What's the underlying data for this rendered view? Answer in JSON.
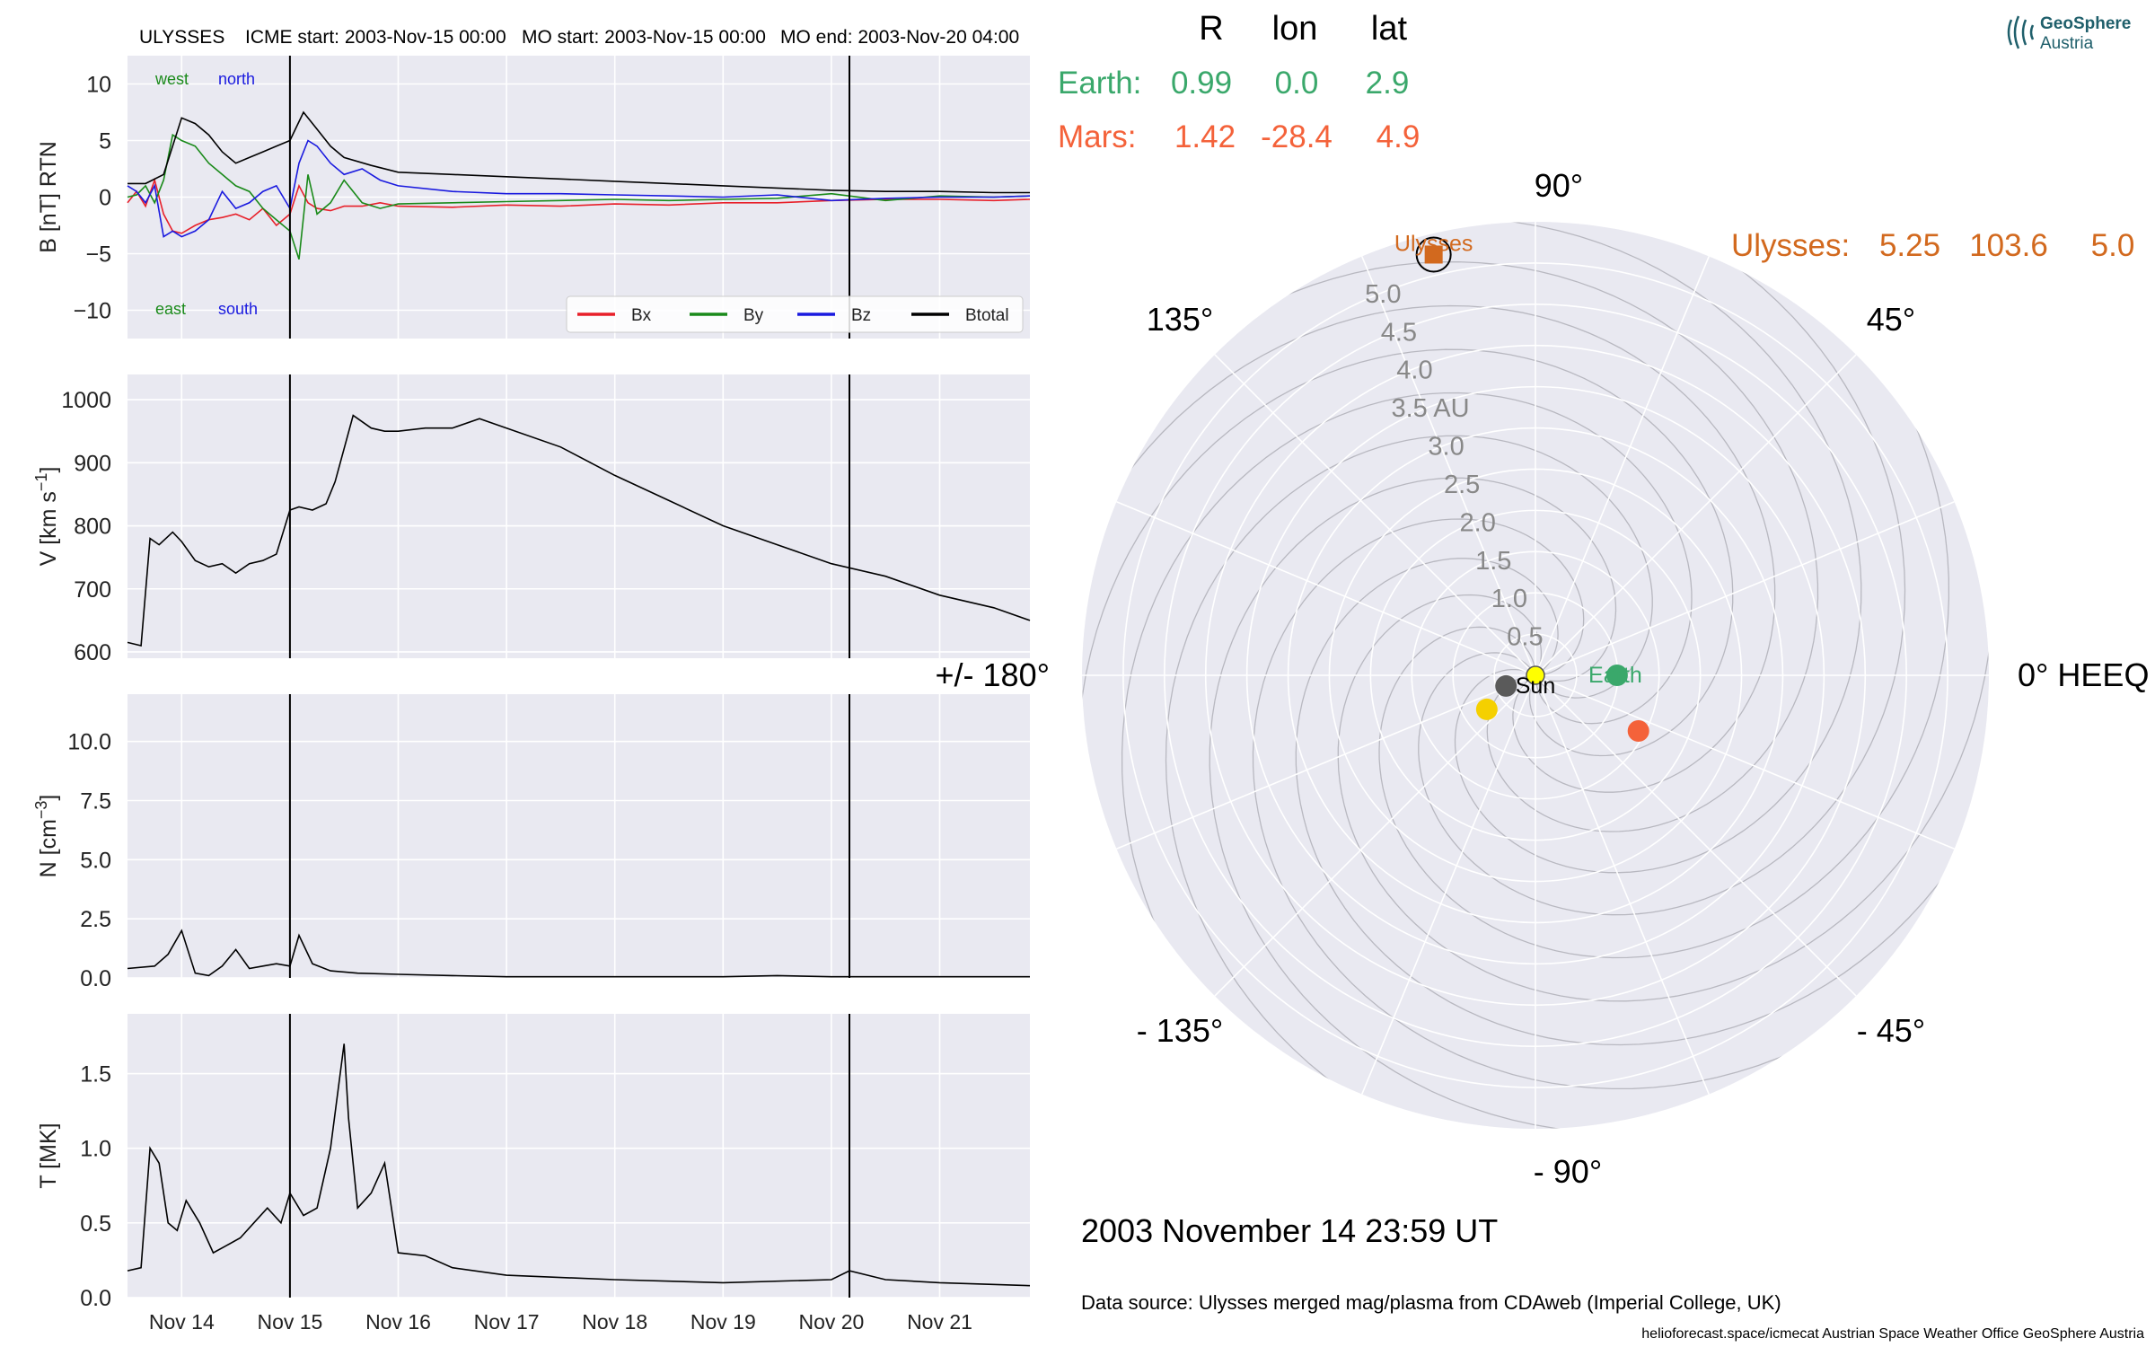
{
  "header": {
    "spacecraft": "ULYSSES",
    "icme_start": "ICME start: 2003-Nov-15 00:00",
    "mo_start": "MO start: 2003-Nov-15 00:00",
    "mo_end": "MO end: 2003-Nov-20 04:00"
  },
  "colors": {
    "panel_bg": "#e9e9f1",
    "grid": "#ffffff",
    "bx": "#e8202a",
    "by": "#1a8a1a",
    "bz": "#1a1adf",
    "btotal": "#000000",
    "earth": "#3aa86b",
    "mars": "#f4623a",
    "ulysses": "#d2691e",
    "mercury": "#5a5a5a",
    "venus": "#f5d000",
    "sun": "#ffff00",
    "spiral": "#b8b8c0"
  },
  "position_table": {
    "headers": [
      "R",
      "lon",
      "lat"
    ],
    "rows": [
      {
        "name": "Earth:",
        "R": "0.99",
        "lon": "0.0",
        "lat": "2.9",
        "color": "#3aa86b"
      },
      {
        "name": "Mars:",
        "R": "1.42",
        "lon": "-28.4",
        "lat": "4.9",
        "color": "#f4623a"
      },
      {
        "name": "Ulysses:",
        "R": "5.25",
        "lon": "103.6",
        "lat": "5.0",
        "color": "#d2691e"
      }
    ]
  },
  "polar": {
    "angle_labels": [
      {
        "deg": 90,
        "text": "90°"
      },
      {
        "deg": 45,
        "text": "45°"
      },
      {
        "deg": 0,
        "text": "0° HEEQ"
      },
      {
        "deg": -45,
        "text": "- 45°"
      },
      {
        "deg": -90,
        "text": "- 90°"
      },
      {
        "deg": -135,
        "text": "- 135°"
      },
      {
        "deg": 180,
        "text": "+/- 180°"
      },
      {
        "deg": 135,
        "text": "135°"
      }
    ],
    "r_labels": [
      "0.5",
      "1.0",
      "1.5",
      "2.0",
      "2.5",
      "3.0",
      "3.5 AU",
      "4.0",
      "4.5",
      "5.0"
    ],
    "r_values": [
      0.5,
      1.0,
      1.5,
      2.0,
      2.5,
      3.0,
      3.5,
      4.0,
      4.5,
      5.0
    ],
    "r_max": 5.5,
    "bodies": [
      {
        "name": "Sun",
        "r": 0,
        "lon": 0,
        "label": "Sun",
        "color": "#ffff00"
      },
      {
        "name": "Earth",
        "r": 0.99,
        "lon": 0.0,
        "label": "Earth",
        "color": "#3aa86b"
      },
      {
        "name": "Mars",
        "r": 1.42,
        "lon": -28.4,
        "label": "",
        "color": "#f4623a"
      },
      {
        "name": "Mercury",
        "r": 0.38,
        "lon": -160,
        "label": "",
        "color": "#5a5a5a"
      },
      {
        "name": "Venus",
        "r": 0.72,
        "lon": -145,
        "label": "",
        "color": "#f5d000"
      },
      {
        "name": "Ulysses",
        "r": 5.25,
        "lon": 103.6,
        "label": "Ulysses",
        "color": "#d2691e"
      }
    ]
  },
  "date_text": "2003 November 14  23:59 UT",
  "data_source": "Data source: Ulysses merged mag/plasma from CDAweb (Imperial College, UK)",
  "footer": "helioforecast.space/icmecat   Austrian Space Weather Office   GeoSphere Austria",
  "logo": {
    "line1": "GeoSphere",
    "line2": "Austria"
  },
  "chart_data": [
    {
      "type": "line",
      "title": "",
      "ylabel": "B [nT] RTN",
      "ylim": [
        -12.5,
        12.5
      ],
      "yticks": [
        -10,
        -5,
        0,
        5,
        10
      ],
      "ytick_labels": [
        "−10",
        "−5",
        "0",
        "5",
        "10"
      ],
      "x_unit": "days from 2003-Nov-14 00:00",
      "xlim_dates": [
        "2003-Nov-13 12:00",
        "2003-Nov-21 20:00"
      ],
      "markers": [
        "2003-Nov-15 00:00",
        "2003-Nov-20 04:00"
      ],
      "annotations": [
        {
          "text": "west",
          "color": "#1a8a1a"
        },
        {
          "text": "north",
          "color": "#1a1adf"
        },
        {
          "text": "east",
          "color": "#1a8a1a"
        },
        {
          "text": "south",
          "color": "#1a1adf"
        }
      ],
      "legend_position": "bottom-right",
      "series": [
        {
          "name": "Bx",
          "color": "#e8202a",
          "x": [
            "2003-11-13 12:00",
            "2003-11-13 14:00",
            "2003-11-13 16:00",
            "2003-11-13 18:00",
            "2003-11-13 20:00",
            "2003-11-13 22:00",
            "2003-11-14 00:00",
            "2003-11-14 03:00",
            "2003-11-14 06:00",
            "2003-11-14 09:00",
            "2003-11-14 12:00",
            "2003-11-14 15:00",
            "2003-11-14 18:00",
            "2003-11-14 21:00",
            "2003-11-15 00:00",
            "2003-11-15 02:00",
            "2003-11-15 04:00",
            "2003-11-15 06:00",
            "2003-11-15 09:00",
            "2003-11-15 12:00",
            "2003-11-15 16:00",
            "2003-11-15 20:00",
            "2003-11-16 00:00",
            "2003-11-16 12:00",
            "2003-11-17 00:00",
            "2003-11-17 12:00",
            "2003-11-18 00:00",
            "2003-11-18 12:00",
            "2003-11-19 00:00",
            "2003-11-19 12:00",
            "2003-11-20 00:00",
            "2003-11-20 12:00",
            "2003-11-21 00:00",
            "2003-11-21 12:00",
            "2003-11-21 20:00"
          ],
          "y": [
            -0.5,
            0.5,
            -0.8,
            1.5,
            -1.5,
            -3.0,
            -3.2,
            -2.5,
            -2.0,
            -1.8,
            -1.5,
            -2.0,
            -1.0,
            -2.5,
            -1.5,
            1.0,
            -0.5,
            -1.0,
            -1.2,
            -0.8,
            -0.8,
            -0.5,
            -0.8,
            -0.9,
            -0.7,
            -0.8,
            -0.6,
            -0.7,
            -0.5,
            -0.5,
            -0.3,
            -0.2,
            -0.2,
            -0.3,
            -0.2
          ]
        },
        {
          "name": "By",
          "color": "#1a8a1a",
          "x": [
            "2003-11-13 12:00",
            "2003-11-13 14:00",
            "2003-11-13 16:00",
            "2003-11-13 18:00",
            "2003-11-13 20:00",
            "2003-11-13 22:00",
            "2003-11-14 00:00",
            "2003-11-14 03:00",
            "2003-11-14 06:00",
            "2003-11-14 09:00",
            "2003-11-14 12:00",
            "2003-11-14 15:00",
            "2003-11-14 18:00",
            "2003-11-14 21:00",
            "2003-11-15 00:00",
            "2003-11-15 02:00",
            "2003-11-15 04:00",
            "2003-11-15 06:00",
            "2003-11-15 09:00",
            "2003-11-15 12:00",
            "2003-11-15 16:00",
            "2003-11-15 20:00",
            "2003-11-16 00:00",
            "2003-11-16 12:00",
            "2003-11-17 00:00",
            "2003-11-17 12:00",
            "2003-11-18 00:00",
            "2003-11-18 12:00",
            "2003-11-19 00:00",
            "2003-11-19 12:00",
            "2003-11-20 00:00",
            "2003-11-20 12:00",
            "2003-11-21 00:00",
            "2003-11-21 12:00",
            "2003-11-21 20:00"
          ],
          "y": [
            0.0,
            0.2,
            1.0,
            -0.5,
            1.5,
            5.5,
            5.0,
            4.5,
            3.0,
            2.0,
            1.0,
            0.5,
            -1.0,
            -2.0,
            -3.0,
            -5.5,
            2.0,
            -1.5,
            -0.5,
            1.5,
            -0.5,
            -1.0,
            -0.6,
            -0.5,
            -0.4,
            -0.3,
            -0.2,
            -0.3,
            -0.2,
            -0.1,
            0.3,
            -0.3,
            0.1,
            0.0,
            0.1
          ]
        },
        {
          "name": "Bz",
          "color": "#1a1adf",
          "x": [
            "2003-11-13 12:00",
            "2003-11-13 14:00",
            "2003-11-13 16:00",
            "2003-11-13 18:00",
            "2003-11-13 20:00",
            "2003-11-13 22:00",
            "2003-11-14 00:00",
            "2003-11-14 03:00",
            "2003-11-14 06:00",
            "2003-11-14 09:00",
            "2003-11-14 12:00",
            "2003-11-14 15:00",
            "2003-11-14 18:00",
            "2003-11-14 21:00",
            "2003-11-15 00:00",
            "2003-11-15 02:00",
            "2003-11-15 04:00",
            "2003-11-15 06:00",
            "2003-11-15 09:00",
            "2003-11-15 12:00",
            "2003-11-15 16:00",
            "2003-11-15 20:00",
            "2003-11-16 00:00",
            "2003-11-16 12:00",
            "2003-11-17 00:00",
            "2003-11-17 12:00",
            "2003-11-18 00:00",
            "2003-11-18 12:00",
            "2003-11-19 00:00",
            "2003-11-19 12:00",
            "2003-11-20 00:00",
            "2003-11-20 12:00",
            "2003-11-21 00:00",
            "2003-11-21 12:00",
            "2003-11-21 20:00"
          ],
          "y": [
            1.0,
            0.5,
            -0.5,
            1.0,
            -3.5,
            -3.0,
            -3.5,
            -3.0,
            -2.0,
            0.5,
            -1.0,
            -0.5,
            0.5,
            1.0,
            -1.0,
            3.0,
            5.0,
            4.5,
            3.0,
            2.0,
            2.5,
            1.5,
            1.0,
            0.5,
            0.3,
            0.3,
            0.2,
            0.1,
            0.0,
            0.2,
            -0.3,
            -0.1,
            0.0,
            0.0,
            0.1
          ]
        },
        {
          "name": "Btotal",
          "color": "#000000",
          "x": [
            "2003-11-13 12:00",
            "2003-11-13 16:00",
            "2003-11-13 20:00",
            "2003-11-14 00:00",
            "2003-11-14 03:00",
            "2003-11-14 06:00",
            "2003-11-14 09:00",
            "2003-11-14 12:00",
            "2003-11-14 15:00",
            "2003-11-14 18:00",
            "2003-11-14 21:00",
            "2003-11-15 00:00",
            "2003-11-15 03:00",
            "2003-11-15 06:00",
            "2003-11-15 09:00",
            "2003-11-15 12:00",
            "2003-11-15 18:00",
            "2003-11-16 00:00",
            "2003-11-16 12:00",
            "2003-11-17 00:00",
            "2003-11-17 12:00",
            "2003-11-18 00:00",
            "2003-11-18 12:00",
            "2003-11-19 00:00",
            "2003-11-19 12:00",
            "2003-11-20 00:00",
            "2003-11-20 12:00",
            "2003-11-21 00:00",
            "2003-11-21 12:00",
            "2003-11-21 20:00"
          ],
          "y": [
            1.2,
            1.2,
            2.0,
            7.0,
            6.5,
            5.5,
            4.0,
            3.0,
            3.5,
            4.0,
            4.5,
            5.0,
            7.5,
            6.0,
            4.5,
            3.5,
            2.8,
            2.2,
            2.0,
            1.8,
            1.6,
            1.4,
            1.2,
            1.0,
            0.8,
            0.6,
            0.5,
            0.5,
            0.4,
            0.4
          ]
        }
      ]
    },
    {
      "type": "line",
      "title": "",
      "ylabel": "V [km s^-1]",
      "ylim": [
        590,
        1040
      ],
      "yticks": [
        600,
        700,
        800,
        900,
        1000
      ],
      "ytick_labels": [
        "600",
        "700",
        "800",
        "900",
        "1000"
      ],
      "x_unit": "days from 2003-Nov-14 00:00",
      "xlim_dates": [
        "2003-Nov-13 12:00",
        "2003-Nov-21 20:00"
      ],
      "series": [
        {
          "name": "",
          "color": "#000000",
          "x": [
            "2003-11-13 12:00",
            "2003-11-13 15:00",
            "2003-11-13 17:00",
            "2003-11-13 19:00",
            "2003-11-13 22:00",
            "2003-11-14 00:00",
            "2003-11-14 03:00",
            "2003-11-14 06:00",
            "2003-11-14 09:00",
            "2003-11-14 12:00",
            "2003-11-14 15:00",
            "2003-11-14 18:00",
            "2003-11-14 21:00",
            "2003-11-15 00:00",
            "2003-11-15 02:00",
            "2003-11-15 05:00",
            "2003-11-15 08:00",
            "2003-11-15 10:00",
            "2003-11-15 14:00",
            "2003-11-15 18:00",
            "2003-11-15 21:00",
            "2003-11-16 00:00",
            "2003-11-16 06:00",
            "2003-11-16 12:00",
            "2003-11-16 18:00",
            "2003-11-17 00:00",
            "2003-11-17 12:00",
            "2003-11-18 00:00",
            "2003-11-18 12:00",
            "2003-11-19 00:00",
            "2003-11-19 12:00",
            "2003-11-20 00:00",
            "2003-11-20 12:00",
            "2003-11-21 00:00",
            "2003-11-21 12:00",
            "2003-11-21 20:00"
          ],
          "y": [
            615,
            610,
            780,
            770,
            790,
            775,
            745,
            735,
            740,
            725,
            740,
            745,
            755,
            825,
            830,
            825,
            835,
            870,
            975,
            955,
            950,
            950,
            955,
            955,
            970,
            955,
            925,
            880,
            840,
            800,
            770,
            740,
            720,
            690,
            670,
            650
          ]
        }
      ]
    },
    {
      "type": "line",
      "title": "",
      "ylabel": "N [cm^-3]",
      "ylim": [
        0,
        12.0
      ],
      "yticks": [
        0.0,
        2.5,
        5.0,
        7.5,
        10.0
      ],
      "ytick_labels": [
        "0.0",
        "2.5",
        "5.0",
        "7.5",
        "10.0"
      ],
      "x_unit": "days from 2003-Nov-14 00:00",
      "xlim_dates": [
        "2003-Nov-13 12:00",
        "2003-Nov-21 20:00"
      ],
      "series": [
        {
          "name": "",
          "color": "#000000",
          "x": [
            "2003-11-13 12:00",
            "2003-11-13 18:00",
            "2003-11-13 21:00",
            "2003-11-14 00:00",
            "2003-11-14 03:00",
            "2003-11-14 06:00",
            "2003-11-14 09:00",
            "2003-11-14 12:00",
            "2003-11-14 15:00",
            "2003-11-14 18:00",
            "2003-11-14 21:00",
            "2003-11-15 00:00",
            "2003-11-15 02:00",
            "2003-11-15 05:00",
            "2003-11-15 09:00",
            "2003-11-15 15:00",
            "2003-11-16 00:00",
            "2003-11-16 12:00",
            "2003-11-17 00:00",
            "2003-11-18 00:00",
            "2003-11-19 00:00",
            "2003-11-19 12:00",
            "2003-11-20 00:00",
            "2003-11-21 00:00",
            "2003-11-21 20:00"
          ],
          "y": [
            0.4,
            0.5,
            1.0,
            2.0,
            0.2,
            0.1,
            0.5,
            1.2,
            0.4,
            0.5,
            0.6,
            0.5,
            1.8,
            0.6,
            0.3,
            0.2,
            0.15,
            0.1,
            0.05,
            0.05,
            0.05,
            0.1,
            0.05,
            0.05,
            0.05
          ]
        }
      ]
    },
    {
      "type": "line",
      "title": "",
      "ylabel": "T [MK]",
      "ylim": [
        0,
        1.9
      ],
      "yticks": [
        0.0,
        0.5,
        1.0,
        1.5
      ],
      "ytick_labels": [
        "0.0",
        "0.5",
        "1.0",
        "1.5"
      ],
      "x_unit": "days from 2003-Nov-14 00:00",
      "xlim_dates": [
        "2003-Nov-13 12:00",
        "2003-Nov-21 20:00"
      ],
      "x_ticks": [
        "Nov 14",
        "Nov 15",
        "Nov 16",
        "Nov 17",
        "Nov 18",
        "Nov 19",
        "Nov 20",
        "Nov 21"
      ],
      "series": [
        {
          "name": "",
          "color": "#000000",
          "x": [
            "2003-11-13 12:00",
            "2003-11-13 15:00",
            "2003-11-13 17:00",
            "2003-11-13 19:00",
            "2003-11-13 21:00",
            "2003-11-13 23:00",
            "2003-11-14 01:00",
            "2003-11-14 04:00",
            "2003-11-14 07:00",
            "2003-11-14 10:00",
            "2003-11-14 13:00",
            "2003-11-14 16:00",
            "2003-11-14 19:00",
            "2003-11-14 22:00",
            "2003-11-15 00:00",
            "2003-11-15 03:00",
            "2003-11-15 06:00",
            "2003-11-15 09:00",
            "2003-11-15 12:00",
            "2003-11-15 13:00",
            "2003-11-15 15:00",
            "2003-11-15 18:00",
            "2003-11-15 21:00",
            "2003-11-16 00:00",
            "2003-11-16 06:00",
            "2003-11-16 12:00",
            "2003-11-17 00:00",
            "2003-11-18 00:00",
            "2003-11-19 00:00",
            "2003-11-20 00:00",
            "2003-11-20 04:00",
            "2003-11-20 12:00",
            "2003-11-21 00:00",
            "2003-11-21 20:00"
          ],
          "y": [
            0.18,
            0.2,
            1.0,
            0.9,
            0.5,
            0.45,
            0.65,
            0.5,
            0.3,
            0.35,
            0.4,
            0.5,
            0.6,
            0.5,
            0.7,
            0.55,
            0.6,
            1.0,
            1.7,
            1.2,
            0.6,
            0.7,
            0.9,
            0.3,
            0.28,
            0.2,
            0.15,
            0.12,
            0.1,
            0.12,
            0.18,
            0.12,
            0.1,
            0.08
          ]
        }
      ]
    }
  ]
}
